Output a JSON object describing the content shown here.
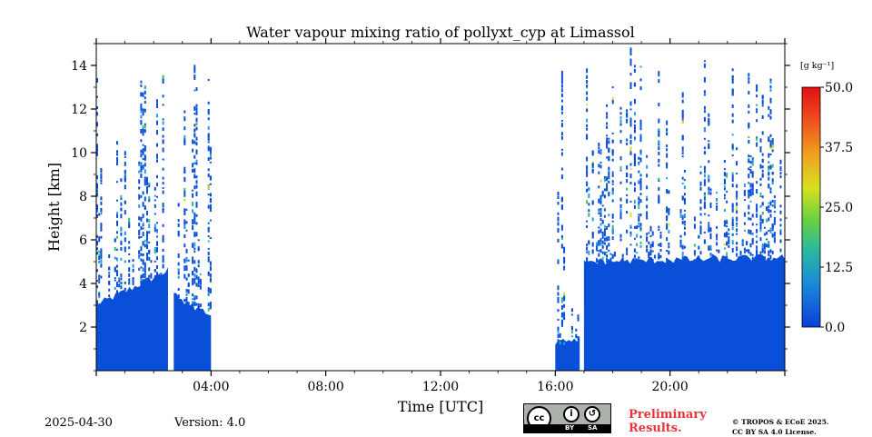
{
  "chart_data": {
    "type": "heatmap",
    "title": "Water vapour mixing ratio of pollyxt_cyp at Limassol",
    "xlabel": "Time [UTC]",
    "ylabel": "Height [km]",
    "xlim": [
      0,
      24
    ],
    "ylim": [
      0,
      15
    ],
    "x_ticks": [
      "04:00",
      "08:00",
      "12:00",
      "16:00",
      "20:00"
    ],
    "y_ticks": [
      "2",
      "4",
      "6",
      "8",
      "10",
      "12",
      "14"
    ],
    "colorbar": {
      "unit": "[g kg⁻¹]",
      "ticks": [
        "0.0",
        "12.5",
        "25.0",
        "37.5",
        "50.0"
      ],
      "range": [
        0,
        50
      ]
    },
    "colors": {
      "base": "#0a4fd8",
      "moist": "#1a78e0",
      "light": "#2a9ae8",
      "green": "#33c07a",
      "yellow": "#d8e020"
    },
    "data_segments": [
      {
        "start": 0.0,
        "end": 2.5,
        "dense_top_start": 3.0,
        "dense_top_end": 4.6,
        "sparse_top": 15
      },
      {
        "start": 2.7,
        "end": 4.0,
        "dense_top_start": 3.5,
        "dense_top_end": 2.5,
        "sparse_top": 15
      },
      {
        "start": 16.0,
        "end": 16.85,
        "dense_top_start": 1.2,
        "dense_top_end": 1.5,
        "sparse_top": 14.5
      },
      {
        "start": 17.0,
        "end": 24.0,
        "dense_top_start": 5.0,
        "dense_top_end": 5.2,
        "sparse_top": 15
      }
    ]
  },
  "footer": {
    "date": "2025-04-30",
    "version": "Version: 4.0",
    "preliminary_line1": "Preliminary",
    "preliminary_line2": "Results.",
    "copyright_line1": "© TROPOS & ECoE 2025.",
    "copyright_line2": "CC BY SA 4.0 License.",
    "license_badge": {
      "by": "BY",
      "sa": "SA"
    }
  }
}
